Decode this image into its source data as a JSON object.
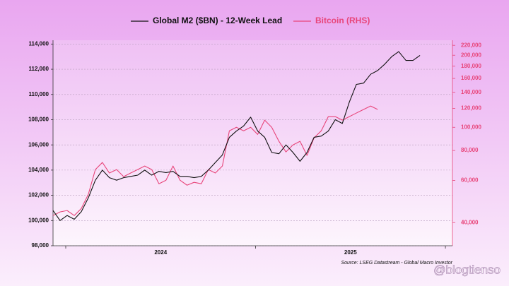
{
  "chart_data": {
    "type": "line",
    "source": "Source: LSEG Datastream - Global Macro Investor",
    "watermark": "@blogtienso",
    "x": [
      2023.933,
      2023.97,
      2024.007,
      2024.045,
      2024.082,
      2024.119,
      2024.156,
      2024.193,
      2024.23,
      2024.268,
      2024.305,
      2024.342,
      2024.379,
      2024.416,
      2024.453,
      2024.491,
      2024.528,
      2024.565,
      2024.602,
      2024.639,
      2024.676,
      2024.714,
      2024.751,
      2024.788,
      2024.825,
      2024.862,
      2024.899,
      2024.937,
      2024.974,
      2025.011,
      2025.048,
      2025.085,
      2025.123,
      2025.16,
      2025.197,
      2025.234,
      2025.271,
      2025.308,
      2025.346,
      2025.383,
      2025.42,
      2025.457,
      2025.494,
      2025.531,
      2025.569,
      2025.606,
      2025.643,
      2025.68,
      2025.717,
      2025.754,
      2025.792,
      2025.829,
      2025.866
    ],
    "series": [
      {
        "name": "Global M2 ($BN) - 12-Week Lead",
        "color": "#111111",
        "axis": "y",
        "values": [
          100800,
          100000,
          100400,
          100100,
          100700,
          101800,
          103200,
          104000,
          103400,
          103200,
          103400,
          103500,
          103600,
          104000,
          103600,
          103900,
          103800,
          103900,
          103500,
          103500,
          103400,
          103500,
          104000,
          104600,
          105200,
          106600,
          107100,
          107500,
          108200,
          107100,
          106600,
          105400,
          105300,
          106000,
          105400,
          104700,
          105400,
          106600,
          106700,
          107100,
          108000,
          107700,
          109400,
          110800,
          110900,
          111600,
          111900,
          112400,
          113000,
          113400,
          112700,
          112700,
          113100
        ]
      },
      {
        "name": "Bitcoin (RHS)",
        "color": "#e8457a",
        "axis": "y2",
        "values": [
          42800,
          44300,
          44900,
          42800,
          45800,
          52500,
          66600,
          71300,
          64400,
          66600,
          62200,
          64400,
          66600,
          68900,
          66600,
          58100,
          60100,
          68900,
          60100,
          57300,
          58900,
          58100,
          66600,
          64400,
          68900,
          96700,
          100000,
          96700,
          100000,
          93400,
          107100,
          100000,
          87400,
          78900,
          84400,
          87400,
          76300,
          90300,
          96700,
          110800,
          110800,
          107100,
          110800,
          114700,
          118700,
          122700,
          118700,
          null,
          null,
          null,
          null,
          null,
          null
        ]
      }
    ],
    "xlim": [
      2023.933,
      2026.037
    ],
    "xticks": [
      2024,
      2025,
      2026
    ],
    "xlabels": [
      "2024",
      "2025"
    ],
    "ylim": [
      98000,
      114300
    ],
    "yticks": [
      {
        "value": 98000,
        "label": "98,000"
      },
      {
        "value": 100000,
        "label": "100,000"
      },
      {
        "value": 102000,
        "label": "102,000"
      },
      {
        "value": 104000,
        "label": "104,000"
      },
      {
        "value": 106000,
        "label": "106,000"
      },
      {
        "value": 108000,
        "label": "108,000"
      },
      {
        "value": 110000,
        "label": "110,000"
      },
      {
        "value": 112000,
        "label": "112,000"
      },
      {
        "value": 114000,
        "label": "114,000"
      }
    ],
    "y2lim": [
      32000,
      231000
    ],
    "y2log": true,
    "y2color": "#e8457a",
    "y2ticks": [
      {
        "value": 40000,
        "label": "40,000"
      },
      {
        "value": 60000,
        "label": "60,000"
      },
      {
        "value": 80000,
        "label": "80,000"
      },
      {
        "value": 100000,
        "label": "100,000"
      },
      {
        "value": 120000,
        "label": "120,000"
      },
      {
        "value": 140000,
        "label": "140,000"
      },
      {
        "value": 160000,
        "label": "160,000"
      },
      {
        "value": 180000,
        "label": "180,000"
      },
      {
        "value": 200000,
        "label": "200,000"
      },
      {
        "value": 220000,
        "label": "220,000"
      }
    ],
    "grid": true,
    "legend": "top"
  }
}
